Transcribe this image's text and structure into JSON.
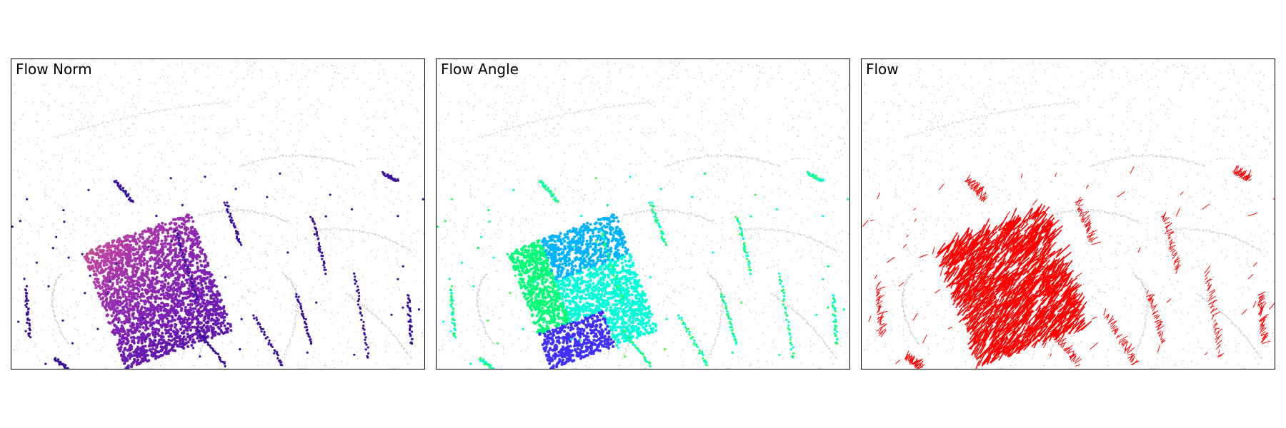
{
  "figure": {
    "panels": [
      {
        "title": "Flow Norm",
        "encoding": "norm",
        "colormap_stops": [
          "#3b0f9e",
          "#7a1fb5",
          "#b23aa8",
          "#e07a6a"
        ]
      },
      {
        "title": "Flow Angle",
        "encoding": "angle",
        "colormap_stops": [
          "#ff0000",
          "#ffff00",
          "#00ff66",
          "#00ffff",
          "#0040ff",
          "#ff00ff"
        ]
      },
      {
        "title": "Flow",
        "encoding": "vectors",
        "arrow_color": "#ff0000"
      }
    ],
    "background_points_color": "#b0b0b0"
  }
}
